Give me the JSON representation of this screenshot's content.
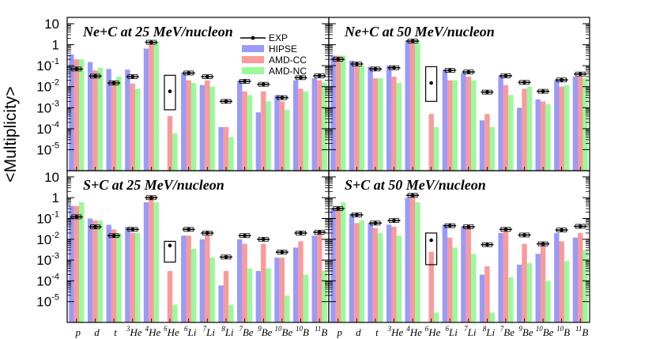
{
  "figure": {
    "ylabel": "<Multiplicity>",
    "legend": {
      "position": "top-right of first panel",
      "entries": [
        {
          "key": "exp",
          "label": "EXP"
        },
        {
          "key": "hipse",
          "label": "HIPSE"
        },
        {
          "key": "amdcc",
          "label": "AMD-CC"
        },
        {
          "key": "amdnc",
          "label": "AMD-NC"
        }
      ]
    },
    "colors": {
      "hipse": "#9a9afa",
      "amdcc": "#fa9a9a",
      "amdnc": "#9afa9a",
      "exp": "#000000"
    }
  },
  "chart_data": [
    {
      "type": "bar",
      "title": "Ne+C at 25 MeV/nucleon",
      "yscale": "log",
      "ylim": [
        1e-06,
        20
      ],
      "yticks": [
        {
          "label": "10",
          "exp": "",
          "value": 10
        },
        {
          "label": "1",
          "exp": "",
          "value": 1
        },
        {
          "label": "10",
          "exp": "-1",
          "value": 0.1
        },
        {
          "label": "10",
          "exp": "-2",
          "value": 0.01
        },
        {
          "label": "10",
          "exp": "-3",
          "value": 0.001
        },
        {
          "label": "10",
          "exp": "-4",
          "value": 0.0001
        },
        {
          "label": "10",
          "exp": "-5",
          "value": 1e-05
        }
      ],
      "categories": [
        {
          "sup": "",
          "name": "p"
        },
        {
          "sup": "",
          "name": "d"
        },
        {
          "sup": "",
          "name": "t"
        },
        {
          "sup": "3",
          "name": "He"
        },
        {
          "sup": "4",
          "name": "He"
        },
        {
          "sup": "6",
          "name": "He"
        },
        {
          "sup": "6",
          "name": "Li"
        },
        {
          "sup": "7",
          "name": "Li"
        },
        {
          "sup": "8",
          "name": "Li"
        },
        {
          "sup": "7",
          "name": "Be"
        },
        {
          "sup": "9",
          "name": "Be"
        },
        {
          "sup": "10",
          "name": "Be"
        },
        {
          "sup": "10",
          "name": "B"
        },
        {
          "sup": "11",
          "name": "B"
        }
      ],
      "series": [
        {
          "name": "HIPSE",
          "values": [
            0.35,
            0.15,
            0.07,
            0.065,
            0.65,
            0,
            0.045,
            0.012,
            0.00012,
            0.018,
            0.0006,
            0.004,
            0.02,
            0.025
          ]
        },
        {
          "name": "AMD-CC",
          "values": [
            0.2,
            0.06,
            0.02,
            0.014,
            1.4,
            0.0004,
            0.02,
            0.02,
            0.00012,
            0.006,
            0.006,
            0.002,
            0.008,
            0.02
          ]
        },
        {
          "name": "AMD-NC",
          "values": [
            0.2,
            0.08,
            0.03,
            0.008,
            1.4,
            6e-05,
            0.015,
            0.01,
            4e-05,
            0.004,
            0.002,
            0.0008,
            0.006,
            0.016
          ]
        },
        {
          "name": "EXP",
          "values": [
            0.07,
            0.032,
            0.015,
            0.03,
            1.3,
            0.006,
            0.045,
            0.03,
            0.002,
            0.018,
            0.013,
            0.003,
            0.027,
            0.033
          ]
        }
      ],
      "exp_box": {
        "category_index": 5,
        "low": 0.0008,
        "high": 0.035
      }
    },
    {
      "type": "bar",
      "title": "Ne+C at 50 MeV/nucleon",
      "yscale": "log",
      "ylim": [
        1e-06,
        20
      ],
      "categories": [
        {
          "sup": "",
          "name": "p"
        },
        {
          "sup": "",
          "name": "d"
        },
        {
          "sup": "",
          "name": "t"
        },
        {
          "sup": "3",
          "name": "He"
        },
        {
          "sup": "4",
          "name": "He"
        },
        {
          "sup": "6",
          "name": "He"
        },
        {
          "sup": "6",
          "name": "Li"
        },
        {
          "sup": "7",
          "name": "Li"
        },
        {
          "sup": "8",
          "name": "Li"
        },
        {
          "sup": "7",
          "name": "Be"
        },
        {
          "sup": "9",
          "name": "Be"
        },
        {
          "sup": "10",
          "name": "Be"
        },
        {
          "sup": "10",
          "name": "B"
        },
        {
          "sup": "11",
          "name": "B"
        }
      ],
      "series": [
        {
          "name": "HIPSE",
          "values": [
            0.3,
            0.17,
            0.09,
            0.1,
            1.6,
            0,
            0.06,
            0.045,
            0.00025,
            0.035,
            0.001,
            0.0025,
            0.02,
            0.03
          ]
        },
        {
          "name": "AMD-CC",
          "values": [
            0.3,
            0.1,
            0.025,
            0.03,
            1.4,
            0.0005,
            0.02,
            0.03,
            0.0005,
            0.012,
            0.008,
            0.002,
            0.01,
            0.03
          ]
        },
        {
          "name": "AMD-NC",
          "values": [
            0.3,
            0.1,
            0.025,
            0.015,
            1.4,
            0.00012,
            0.02,
            0.02,
            0.00012,
            0.004,
            0.01,
            0.0015,
            0.012,
            0.025
          ]
        },
        {
          "name": "EXP",
          "values": [
            0.2,
            0.12,
            0.07,
            0.08,
            1.5,
            0.015,
            0.06,
            0.05,
            0.0055,
            0.033,
            0.016,
            0.006,
            0.021,
            0.04
          ]
        }
      ],
      "exp_box": {
        "category_index": 5,
        "low": 0.002,
        "high": 0.09
      }
    },
    {
      "type": "bar",
      "title": "S+C at 25 MeV/nucleon",
      "yscale": "log",
      "ylim": [
        1e-06,
        20
      ],
      "categories": [
        {
          "sup": "",
          "name": "p"
        },
        {
          "sup": "",
          "name": "d"
        },
        {
          "sup": "",
          "name": "t"
        },
        {
          "sup": "3",
          "name": "He"
        },
        {
          "sup": "4",
          "name": "He"
        },
        {
          "sup": "6",
          "name": "He"
        },
        {
          "sup": "6",
          "name": "Li"
        },
        {
          "sup": "7",
          "name": "Li"
        },
        {
          "sup": "8",
          "name": "Li"
        },
        {
          "sup": "7",
          "name": "Be"
        },
        {
          "sup": "9",
          "name": "Be"
        },
        {
          "sup": "10",
          "name": "Be"
        },
        {
          "sup": "10",
          "name": "B"
        },
        {
          "sup": "11",
          "name": "B"
        }
      ],
      "series": [
        {
          "name": "HIPSE",
          "values": [
            0.4,
            0.1,
            0.05,
            0.04,
            0.6,
            0,
            0.015,
            0.01,
            6e-05,
            0.01,
            0.0003,
            0.0013,
            0.004,
            0.015
          ]
        },
        {
          "name": "AMD-CC",
          "values": [
            0.4,
            0.08,
            0.03,
            0.02,
            1.2,
            0.0003,
            0.015,
            0.015,
            0.0003,
            0.006,
            0.006,
            0.0013,
            0.008,
            0.02
          ]
        },
        {
          "name": "AMD-NC",
          "values": [
            0.6,
            0.08,
            0.02,
            0.02,
            0.6,
            7e-06,
            0.0035,
            0.0013,
            7e-06,
            0.0004,
            0.0004,
            2e-05,
            0.0002,
            0.0003
          ]
        },
        {
          "name": "EXP",
          "values": [
            0.12,
            0.04,
            0.015,
            0.03,
            1.0,
            0.005,
            0.03,
            0.02,
            0.0014,
            0.015,
            0.01,
            0.0024,
            0.02,
            0.022
          ]
        }
      ],
      "exp_box": {
        "category_index": 5,
        "low": 0.0008,
        "high": 0.008
      }
    },
    {
      "type": "bar",
      "title": "S+C at 50 MeV/nucleon",
      "yscale": "log",
      "ylim": [
        1e-06,
        20
      ],
      "categories": [
        {
          "sup": "",
          "name": "p"
        },
        {
          "sup": "",
          "name": "d"
        },
        {
          "sup": "",
          "name": "t"
        },
        {
          "sup": "3",
          "name": "He"
        },
        {
          "sup": "4",
          "name": "He"
        },
        {
          "sup": "6",
          "name": "He"
        },
        {
          "sup": "6",
          "name": "Li"
        },
        {
          "sup": "7",
          "name": "Li"
        },
        {
          "sup": "8",
          "name": "Li"
        },
        {
          "sup": "7",
          "name": "Be"
        },
        {
          "sup": "9",
          "name": "Be"
        },
        {
          "sup": "10",
          "name": "Be"
        },
        {
          "sup": "10",
          "name": "B"
        },
        {
          "sup": "11",
          "name": "B"
        }
      ],
      "series": [
        {
          "name": "HIPSE",
          "values": [
            0.3,
            0.17,
            0.06,
            0.05,
            1.0,
            0,
            0.05,
            0.04,
            0.0002,
            0.02,
            0.0006,
            0.002,
            0.02,
            0.012
          ]
        },
        {
          "name": "AMD-CC",
          "values": [
            0.4,
            0.06,
            0.035,
            0.04,
            1.2,
            0.0025,
            0.012,
            0.04,
            0.0005,
            0.025,
            0.006,
            0.006,
            0.008,
            0.02
          ]
        },
        {
          "name": "AMD-NC",
          "values": [
            0.6,
            0.08,
            0.02,
            0.015,
            0.6,
            3e-06,
            0.004,
            0.002,
            3e-06,
            0.00015,
            0.0007,
            0.0001,
            0.0009,
            0.003
          ]
        },
        {
          "name": "EXP",
          "values": [
            0.3,
            0.15,
            0.06,
            0.08,
            1.3,
            0.009,
            0.045,
            0.04,
            0.0055,
            0.03,
            0.016,
            0.006,
            0.028,
            0.042
          ]
        }
      ],
      "exp_box": {
        "category_index": 5,
        "low": 0.0006,
        "high": 0.02
      }
    }
  ]
}
